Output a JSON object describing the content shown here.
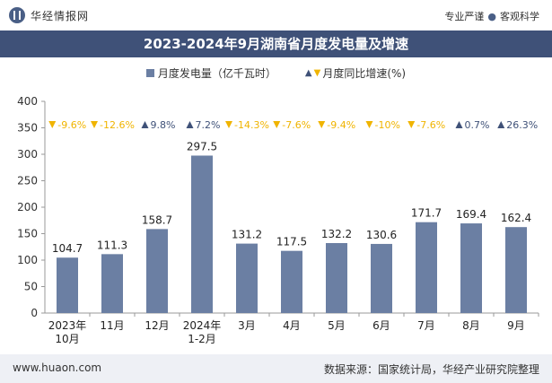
{
  "header": {
    "brand": "华经情报网",
    "slogan_left": "专业严谨",
    "slogan_right": "客观科学"
  },
  "title": "2023-2024年9月湖南省月度发电量及增速",
  "legend": {
    "bar_label": "月度发电量（亿千瓦时）",
    "line_label": "月度同比增速(%)"
  },
  "footer": {
    "website": "www.huaon.com",
    "source": "数据来源：国家统计局，华经产业研究院整理"
  },
  "colors": {
    "bar": "#6b7fa3",
    "up": "#3f5178",
    "down": "#f0b400",
    "header_bg": "#3f5178"
  },
  "chart_data": {
    "type": "bar",
    "categories": [
      [
        "2023年",
        "10月"
      ],
      [
        "11月"
      ],
      [
        "12月"
      ],
      [
        "2024年",
        "1-2月"
      ],
      [
        "3月"
      ],
      [
        "4月"
      ],
      [
        "5月"
      ],
      [
        "6月"
      ],
      [
        "7月"
      ],
      [
        "8月"
      ],
      [
        "9月"
      ]
    ],
    "series": [
      {
        "name": "月度发电量（亿千瓦时）",
        "values": [
          104.7,
          111.3,
          158.7,
          297.5,
          131.2,
          117.5,
          132.2,
          130.6,
          171.7,
          169.4,
          162.4
        ]
      }
    ],
    "growth": {
      "name": "月度同比增速(%)",
      "labels": [
        "-9.6%",
        "-12.6%",
        "9.8%",
        "7.2%",
        "-14.3%",
        "-7.6%",
        "-9.4%",
        "-10%",
        "-7.6%",
        "0.7%",
        "26.3%"
      ],
      "direction": [
        "down",
        "down",
        "up",
        "up",
        "down",
        "down",
        "down",
        "down",
        "down",
        "up",
        "up"
      ]
    },
    "ylim": [
      0,
      400
    ],
    "yticks": [
      0,
      50,
      100,
      150,
      200,
      250,
      300,
      350,
      400
    ],
    "grid": false
  }
}
